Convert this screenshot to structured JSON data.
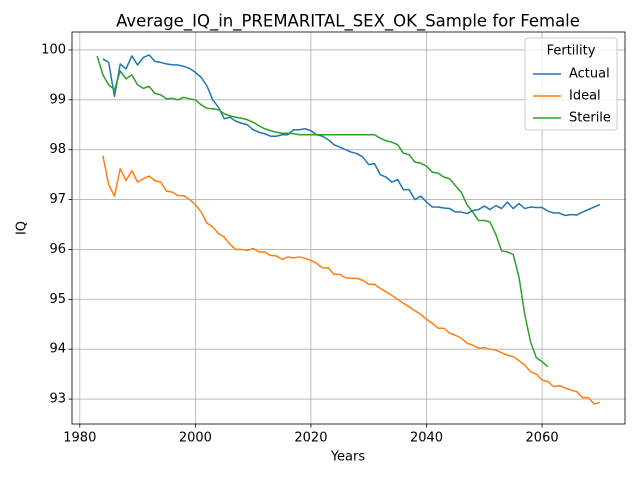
{
  "chart_data": {
    "type": "line",
    "title": "Average_IQ_in_PREMARITAL_SEX_OK_Sample for Female",
    "xlabel": "Years",
    "ylabel": "IQ",
    "legend_title": "Fertility",
    "legend": "upper right",
    "grid": true,
    "x": [
      1983,
      1984,
      1985,
      1986,
      1987,
      1988,
      1989,
      1990,
      1991,
      1992,
      1993,
      1994,
      1995,
      1996,
      1997,
      1998,
      1999,
      2000,
      2001,
      2002,
      2003,
      2004,
      2005,
      2006,
      2007,
      2008,
      2009,
      2010,
      2011,
      2012,
      2013,
      2014,
      2015,
      2016,
      2017,
      2018,
      2019,
      2020,
      2021,
      2022,
      2023,
      2024,
      2025,
      2026,
      2027,
      2028,
      2029,
      2030,
      2031,
      2032,
      2033,
      2034,
      2035,
      2036,
      2037,
      2038,
      2039,
      2040,
      2041,
      2042,
      2043,
      2044,
      2045,
      2046,
      2047,
      2048,
      2049,
      2050,
      2051,
      2052,
      2053,
      2054,
      2055,
      2056,
      2057,
      2058,
      2059,
      2060,
      2061,
      2062,
      2063,
      2064,
      2065,
      2066,
      2067,
      2068,
      2069,
      2070
    ],
    "series": [
      {
        "name": "Actual",
        "color": "#1f77b4",
        "values": [
          null,
          99.82,
          99.75,
          99.07,
          99.72,
          99.62,
          99.88,
          99.7,
          99.85,
          99.9,
          99.77,
          99.75,
          99.72,
          99.7,
          99.7,
          99.67,
          99.63,
          99.55,
          99.45,
          99.28,
          99.0,
          98.85,
          98.62,
          98.65,
          98.57,
          98.53,
          98.5,
          98.4,
          98.35,
          98.32,
          98.27,
          98.27,
          98.3,
          98.3,
          98.4,
          98.4,
          98.42,
          98.38,
          98.3,
          98.27,
          98.2,
          98.1,
          98.05,
          98.0,
          97.95,
          97.92,
          97.85,
          97.7,
          97.72,
          97.5,
          97.45,
          97.35,
          97.4,
          97.2,
          97.2,
          97.0,
          97.07,
          96.95,
          96.85,
          96.85,
          96.83,
          96.82,
          96.75,
          96.75,
          96.72,
          96.78,
          96.8,
          96.87,
          96.8,
          96.88,
          96.82,
          96.95,
          96.82,
          96.92,
          96.82,
          96.85,
          96.84,
          96.84,
          96.77,
          96.73,
          96.73,
          96.68,
          96.7,
          96.69,
          96.75,
          96.8,
          96.85,
          96.9
        ]
      },
      {
        "name": "Ideal",
        "color": "#ff7f0e",
        "values": [
          null,
          97.88,
          97.3,
          97.07,
          97.62,
          97.38,
          97.58,
          97.35,
          97.42,
          97.47,
          97.38,
          97.35,
          97.17,
          97.15,
          97.08,
          97.08,
          97.0,
          96.9,
          96.75,
          96.53,
          96.45,
          96.32,
          96.25,
          96.1,
          96.0,
          96.0,
          95.98,
          96.02,
          95.95,
          95.95,
          95.88,
          95.87,
          95.8,
          95.85,
          95.83,
          95.85,
          95.82,
          95.78,
          95.72,
          95.63,
          95.63,
          95.5,
          95.5,
          95.43,
          95.42,
          95.42,
          95.38,
          95.3,
          95.3,
          95.22,
          95.15,
          95.08,
          95.0,
          94.92,
          94.85,
          94.77,
          94.7,
          94.6,
          94.52,
          94.42,
          94.42,
          94.32,
          94.28,
          94.22,
          94.12,
          94.08,
          94.02,
          94.03,
          94.0,
          93.98,
          93.93,
          93.88,
          93.85,
          93.77,
          93.68,
          93.55,
          93.5,
          93.38,
          93.35,
          93.25,
          93.27,
          93.22,
          93.18,
          93.15,
          93.03,
          93.03,
          92.9,
          92.93
        ]
      },
      {
        "name": "Sterile",
        "color": "#2ca02c",
        "values": [
          99.88,
          99.5,
          99.3,
          99.2,
          99.58,
          99.42,
          99.5,
          99.3,
          99.23,
          99.27,
          99.13,
          99.1,
          99.02,
          99.03,
          99.0,
          99.05,
          99.02,
          99.0,
          98.9,
          98.83,
          98.82,
          98.8,
          98.72,
          98.68,
          98.65,
          98.63,
          98.6,
          98.55,
          98.48,
          98.42,
          98.38,
          98.35,
          98.33,
          98.33,
          98.32,
          98.3,
          98.3,
          98.3,
          98.3,
          98.3,
          98.3,
          98.3,
          98.3,
          98.3,
          98.3,
          98.3,
          98.3,
          98.3,
          98.3,
          98.23,
          98.18,
          98.15,
          98.1,
          97.93,
          97.9,
          97.75,
          97.73,
          97.67,
          97.55,
          97.53,
          97.45,
          97.42,
          97.28,
          97.15,
          96.9,
          96.75,
          96.58,
          96.58,
          96.55,
          96.3,
          95.97,
          95.95,
          95.9,
          95.45,
          94.7,
          94.15,
          93.83,
          93.75,
          93.65,
          null,
          null,
          null,
          null,
          null,
          null,
          null,
          null,
          null
        ]
      }
    ],
    "xlim": [
      1978.65,
      2074.35
    ],
    "ylim": [
      92.5,
      100.36
    ],
    "xticks": [
      1980,
      2000,
      2020,
      2040,
      2060
    ],
    "yticks": [
      93,
      94,
      95,
      96,
      97,
      98,
      99,
      100
    ]
  }
}
